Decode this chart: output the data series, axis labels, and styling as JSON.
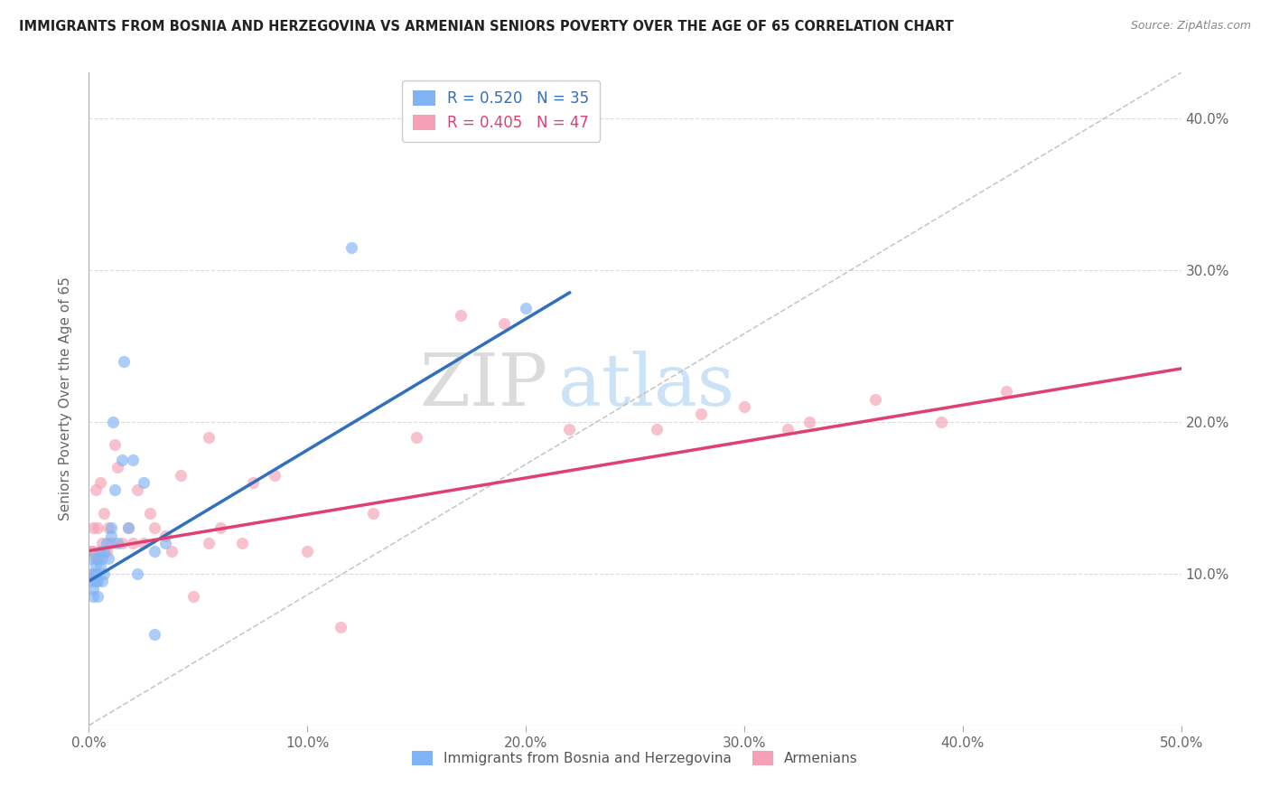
{
  "title": "IMMIGRANTS FROM BOSNIA AND HERZEGOVINA VS ARMENIAN SENIORS POVERTY OVER THE AGE OF 65 CORRELATION CHART",
  "source": "Source: ZipAtlas.com",
  "ylabel": "Seniors Poverty Over the Age of 65",
  "xlim": [
    0.0,
    0.5
  ],
  "ylim": [
    0.0,
    0.43
  ],
  "ytick_vals": [
    0.1,
    0.2,
    0.3,
    0.4
  ],
  "ytick_labels": [
    "10.0%",
    "20.0%",
    "30.0%",
    "40.0%"
  ],
  "xtick_vals": [
    0.0,
    0.1,
    0.2,
    0.3,
    0.4,
    0.5
  ],
  "xtick_labels": [
    "0.0%",
    "10.0%",
    "20.0%",
    "30.0%",
    "40.0%",
    "50.0%"
  ],
  "legend_bosnia_label": "Immigrants from Bosnia and Herzegovina",
  "legend_armenian_label": "Armenians",
  "legend_bosnia_r": "R = 0.520",
  "legend_bosnia_n": "N = 35",
  "legend_armenian_r": "R = 0.405",
  "legend_armenian_n": "N = 47",
  "color_bosnia": "#7fb3f5",
  "color_armenian": "#f5a0b5",
  "color_trendline_bosnia": "#3070c0",
  "color_trendline_armenian": "#e04070",
  "color_diagonal": "#bbbbbb",
  "watermark_zip": "ZIP",
  "watermark_atlas": "atlas",
  "bosnia_x": [
    0.001,
    0.001,
    0.002,
    0.002,
    0.002,
    0.003,
    0.003,
    0.003,
    0.004,
    0.004,
    0.004,
    0.005,
    0.005,
    0.006,
    0.006,
    0.007,
    0.007,
    0.008,
    0.009,
    0.01,
    0.01,
    0.011,
    0.012,
    0.013,
    0.015,
    0.016,
    0.018,
    0.02,
    0.022,
    0.025,
    0.03,
    0.035,
    0.12,
    0.2,
    0.03
  ],
  "bosnia_y": [
    0.11,
    0.095,
    0.1,
    0.09,
    0.085,
    0.105,
    0.1,
    0.095,
    0.11,
    0.095,
    0.085,
    0.115,
    0.105,
    0.11,
    0.095,
    0.115,
    0.1,
    0.12,
    0.11,
    0.125,
    0.13,
    0.2,
    0.155,
    0.12,
    0.175,
    0.24,
    0.13,
    0.175,
    0.1,
    0.16,
    0.115,
    0.12,
    0.315,
    0.275,
    0.06
  ],
  "armenian_x": [
    0.001,
    0.001,
    0.002,
    0.002,
    0.003,
    0.003,
    0.004,
    0.005,
    0.006,
    0.007,
    0.008,
    0.009,
    0.01,
    0.012,
    0.013,
    0.015,
    0.018,
    0.02,
    0.022,
    0.025,
    0.028,
    0.03,
    0.035,
    0.038,
    0.042,
    0.048,
    0.055,
    0.06,
    0.075,
    0.085,
    0.1,
    0.115,
    0.13,
    0.15,
    0.17,
    0.19,
    0.22,
    0.26,
    0.3,
    0.33,
    0.36,
    0.39,
    0.42,
    0.32,
    0.28,
    0.055,
    0.07
  ],
  "armenian_y": [
    0.115,
    0.1,
    0.13,
    0.115,
    0.155,
    0.11,
    0.13,
    0.16,
    0.12,
    0.14,
    0.115,
    0.13,
    0.12,
    0.185,
    0.17,
    0.12,
    0.13,
    0.12,
    0.155,
    0.12,
    0.14,
    0.13,
    0.125,
    0.115,
    0.165,
    0.085,
    0.12,
    0.13,
    0.16,
    0.165,
    0.115,
    0.065,
    0.14,
    0.19,
    0.27,
    0.265,
    0.195,
    0.195,
    0.21,
    0.2,
    0.215,
    0.2,
    0.22,
    0.195,
    0.205,
    0.19,
    0.12
  ],
  "trendline_bosnia_x0": 0.0,
  "trendline_bosnia_x1": 0.22,
  "trendline_bosnia_y0": 0.095,
  "trendline_bosnia_y1": 0.285,
  "trendline_armenian_x0": 0.0,
  "trendline_armenian_x1": 0.5,
  "trendline_armenian_y0": 0.115,
  "trendline_armenian_y1": 0.235
}
